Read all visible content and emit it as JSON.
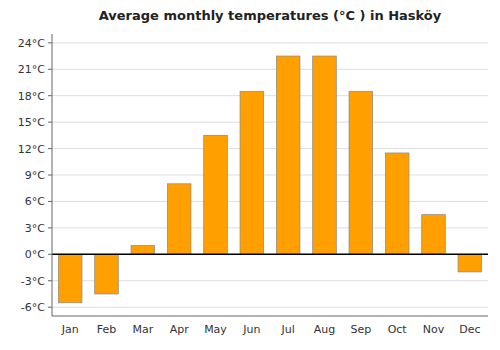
{
  "chart_data": {
    "type": "bar",
    "title": "Average monthly temperatures (°C ) in Hasköy",
    "categories": [
      "Jan",
      "Feb",
      "Mar",
      "Apr",
      "May",
      "Jun",
      "Jul",
      "Aug",
      "Sep",
      "Oct",
      "Nov",
      "Dec"
    ],
    "values": [
      -5.5,
      -4.5,
      1.0,
      8.0,
      13.5,
      18.5,
      22.5,
      22.5,
      18.5,
      11.5,
      4.5,
      -2.0
    ],
    "color": "#FFA000",
    "ylim": [
      -7,
      25
    ],
    "yticks": [
      {
        "value": -6,
        "label": "-6°C"
      },
      {
        "value": -3,
        "label": "-3°C"
      },
      {
        "value": 0,
        "label": "0°C"
      },
      {
        "value": 3,
        "label": "3°C"
      },
      {
        "value": 6,
        "label": "6°C"
      },
      {
        "value": 9,
        "label": "9°C"
      },
      {
        "value": 12,
        "label": "12°C"
      },
      {
        "value": 15,
        "label": "15°C"
      },
      {
        "value": 18,
        "label": "18°C"
      },
      {
        "value": 21,
        "label": "21°C"
      },
      {
        "value": 24,
        "label": "24°C"
      }
    ],
    "grid": true
  }
}
